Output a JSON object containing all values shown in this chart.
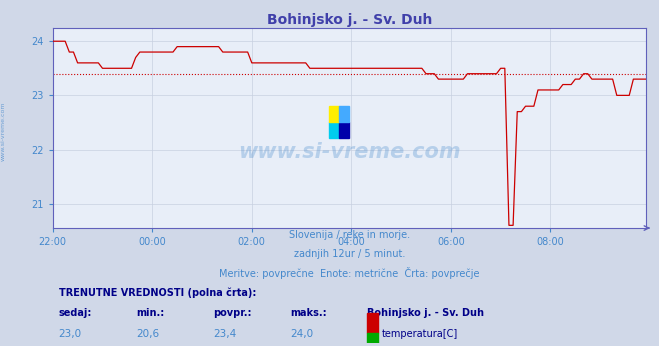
{
  "title": "Bohinjsko j. - Sv. Duh",
  "title_color": "#4040aa",
  "bg_color": "#d0d8e8",
  "plot_bg_color": "#e8eef8",
  "grid_color": "#c8d0e0",
  "axis_color": "#6060bb",
  "tick_color": "#4488cc",
  "line_color": "#cc0000",
  "avg_line_color": "#cc0000",
  "avg_value": 23.4,
  "ylim": [
    20.55,
    24.25
  ],
  "yticks": [
    21,
    22,
    23,
    24
  ],
  "x_labels": [
    "22:00",
    "00:00",
    "02:00",
    "04:00",
    "06:00",
    "08:00"
  ],
  "watermark_text": "www.si-vreme.com",
  "watermark_color": "#4488cc",
  "watermark_alpha": 0.3,
  "subtitle1": "Slovenija / reke in morje.",
  "subtitle2": "zadnjih 12ur / 5 minut.",
  "subtitle3": "Meritve: povprečne  Enote: metrične  Črta: povprečje",
  "subtitle_color": "#4488cc",
  "table_header_color": "#000088",
  "table_value_color": "#4488cc",
  "table_bold_color": "#000088",
  "legend_station": "Bohinjsko j. - Sv. Duh",
  "sedaj": "23,0",
  "min_val": "20,6",
  "povpr": "23,4",
  "maks": "24,0",
  "temp_color": "#cc0000",
  "pretok_color": "#00aa00",
  "temp_data": [
    24.0,
    24.0,
    24.0,
    24.0,
    23.8,
    23.8,
    23.6,
    23.6,
    23.6,
    23.6,
    23.6,
    23.6,
    23.5,
    23.5,
    23.5,
    23.5,
    23.5,
    23.5,
    23.5,
    23.5,
    23.7,
    23.8,
    23.8,
    23.8,
    23.8,
    23.8,
    23.8,
    23.8,
    23.8,
    23.8,
    23.9,
    23.9,
    23.9,
    23.9,
    23.9,
    23.9,
    23.9,
    23.9,
    23.9,
    23.9,
    23.9,
    23.8,
    23.8,
    23.8,
    23.8,
    23.8,
    23.8,
    23.8,
    23.6,
    23.6,
    23.6,
    23.6,
    23.6,
    23.6,
    23.6,
    23.6,
    23.6,
    23.6,
    23.6,
    23.6,
    23.6,
    23.6,
    23.5,
    23.5,
    23.5,
    23.5,
    23.5,
    23.5,
    23.5,
    23.5,
    23.5,
    23.5,
    23.5,
    23.5,
    23.5,
    23.5,
    23.5,
    23.5,
    23.5,
    23.5,
    23.5,
    23.5,
    23.5,
    23.5,
    23.5,
    23.5,
    23.5,
    23.5,
    23.5,
    23.5,
    23.4,
    23.4,
    23.4,
    23.3,
    23.3,
    23.3,
    23.3,
    23.3,
    23.3,
    23.3,
    23.4,
    23.4,
    23.4,
    23.4,
    23.4,
    23.4,
    23.4,
    23.4,
    23.5,
    23.5,
    20.6,
    20.6,
    22.7,
    22.7,
    22.8,
    22.8,
    22.8,
    23.1,
    23.1,
    23.1,
    23.1,
    23.1,
    23.1,
    23.2,
    23.2,
    23.2,
    23.3,
    23.3,
    23.4,
    23.4,
    23.3,
    23.3,
    23.3,
    23.3,
    23.3,
    23.3,
    23.0,
    23.0,
    23.0,
    23.0,
    23.3,
    23.3,
    23.3,
    23.3
  ]
}
